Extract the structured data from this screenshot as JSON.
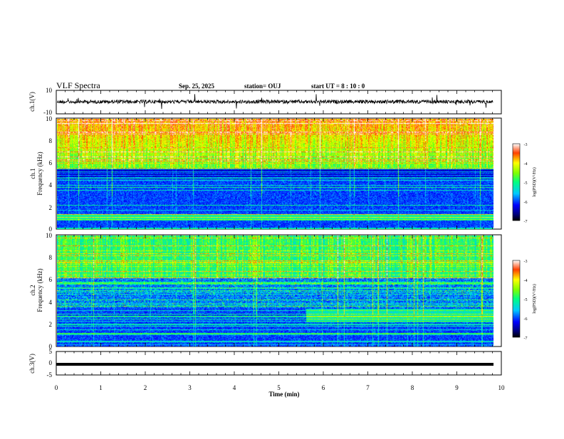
{
  "header": {
    "title": "VLF Spectra",
    "date": "Sep. 25, 2025",
    "station": "station= OUJ",
    "start": "start  UT =   8 : 10 : 0"
  },
  "chart_data": [
    {
      "type": "line",
      "name": "waveform-ch1",
      "ylabel": "ch.1(V)",
      "ylim": [
        -10,
        10
      ],
      "ytick_labels": [
        "10",
        "-10"
      ],
      "xlim": [
        0,
        10
      ]
    },
    {
      "type": "heatmap",
      "name": "spectrogram-ch1",
      "ylabel": [
        "ch.1",
        "Frequency  (kHz)"
      ],
      "ylim": [
        0,
        10
      ],
      "ytick_labels": [
        "0",
        "2",
        "4",
        "6",
        "8",
        "10"
      ],
      "xlim": [
        0,
        10
      ],
      "data_end_min": 9.8,
      "colorbar": {
        "label": "log(PSD)(V²/Hz)",
        "range": [
          -7,
          -3
        ],
        "tick_labels": [
          "-3",
          "-4",
          "-5",
          "-6",
          "-7"
        ]
      }
    },
    {
      "type": "heatmap",
      "name": "spectrogram-ch2",
      "ylabel": [
        "ch.2",
        "Frequency  (kHz)"
      ],
      "ylim": [
        0,
        10
      ],
      "ytick_labels": [
        "0",
        "2",
        "4",
        "6",
        "8",
        "10"
      ],
      "xlim": [
        0,
        10
      ],
      "data_end_min": 9.8,
      "colorbar": {
        "label": "log(PSD)(V²/Hz)",
        "range": [
          -7,
          -3
        ],
        "tick_labels": [
          "-3",
          "-4",
          "-5",
          "-6",
          "-7"
        ]
      }
    },
    {
      "type": "line",
      "name": "waveform-ch3",
      "ylabel": "ch.3(V)",
      "ylim": [
        -5,
        5
      ],
      "ytick_labels": [
        "5",
        "0",
        "-5"
      ],
      "xlim": [
        0,
        10
      ],
      "level": -1
    }
  ],
  "xaxis": {
    "label": "Time  (min)",
    "tick_labels": [
      "0",
      "1",
      "2",
      "3",
      "4",
      "5",
      "6",
      "7",
      "8",
      "9",
      "10"
    ]
  }
}
